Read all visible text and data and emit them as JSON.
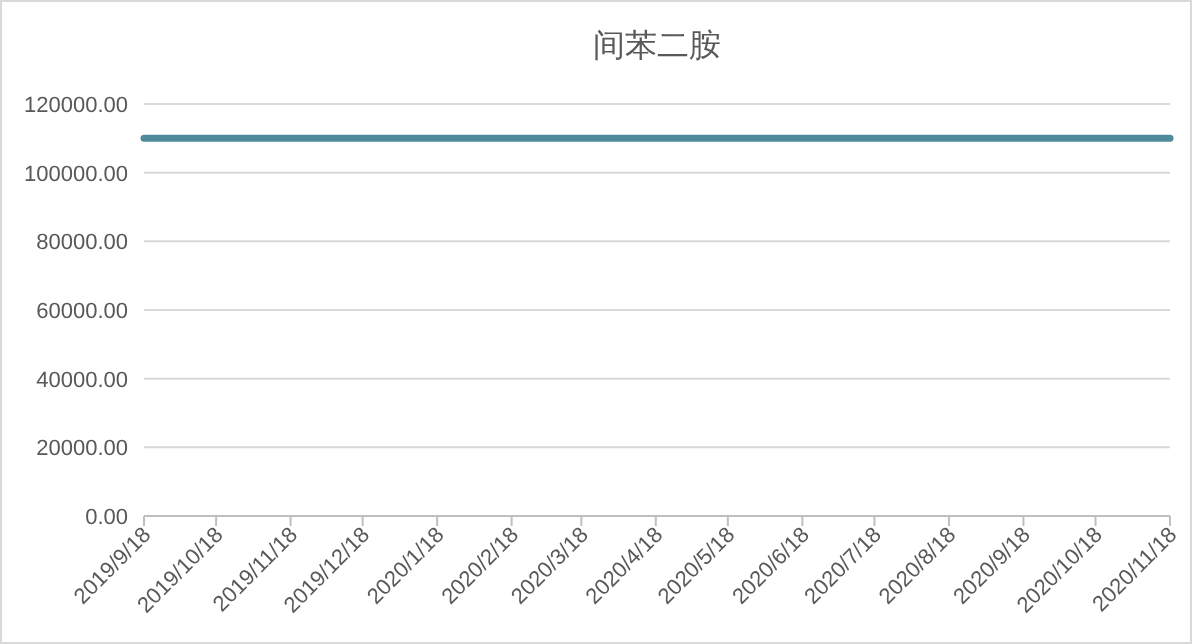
{
  "chart_data": {
    "type": "line",
    "title": "间苯二胺",
    "x": [
      "2019-09-18",
      "2019-10-18",
      "2019-11-18",
      "2019-12-18",
      "2020-01-18",
      "2020-02-18",
      "2020-03-18",
      "2020-04-18",
      "2020-05-18",
      "2020-06-18",
      "2020-07-18",
      "2020-08-18",
      "2020-09-18",
      "2020-10-18",
      "2020-11-18"
    ],
    "series": [
      {
        "color": "#4f8a9b",
        "values": [
          110000,
          110000,
          110000,
          110000,
          110000,
          110000,
          110000,
          110000,
          110000,
          110000,
          110000,
          110000,
          110000,
          110000,
          110000
        ]
      }
    ],
    "xlim": [
      "2019-09-18",
      "2020-11-18"
    ],
    "xticks": [
      {
        "value": "2019-09-18",
        "label": "2019/9/18"
      },
      {
        "value": "2019-10-18",
        "label": "2019/10/18"
      },
      {
        "value": "2019-11-18",
        "label": "2019/11/18"
      },
      {
        "value": "2019-12-18",
        "label": "2019/12/18"
      },
      {
        "value": "2020-01-18",
        "label": "2020/1/18"
      },
      {
        "value": "2020-02-18",
        "label": "2020/2/18"
      },
      {
        "value": "2020-03-18",
        "label": "2020/3/18"
      },
      {
        "value": "2020-04-18",
        "label": "2020/4/18"
      },
      {
        "value": "2020-05-18",
        "label": "2020/5/18"
      },
      {
        "value": "2020-06-18",
        "label": "2020/6/18"
      },
      {
        "value": "2020-07-18",
        "label": "2020/7/18"
      },
      {
        "value": "2020-08-18",
        "label": "2020/8/18"
      },
      {
        "value": "2020-09-18",
        "label": "2020/9/18"
      },
      {
        "value": "2020-10-18",
        "label": "2020/10/18"
      },
      {
        "value": "2020-11-18",
        "label": "2020/11/18"
      }
    ],
    "ylim": [
      0,
      120000
    ],
    "yticks": [
      {
        "value": 0,
        "label": "0.00"
      },
      {
        "value": 20000,
        "label": "20000.00"
      },
      {
        "value": 40000,
        "label": "40000.00"
      },
      {
        "value": 60000,
        "label": "60000.00"
      },
      {
        "value": 80000,
        "label": "80000.00"
      },
      {
        "value": 100000,
        "label": "100000.00"
      },
      {
        "value": 120000,
        "label": "120000.00"
      }
    ],
    "grid": "y",
    "marker": "none",
    "line_style": "solid"
  }
}
